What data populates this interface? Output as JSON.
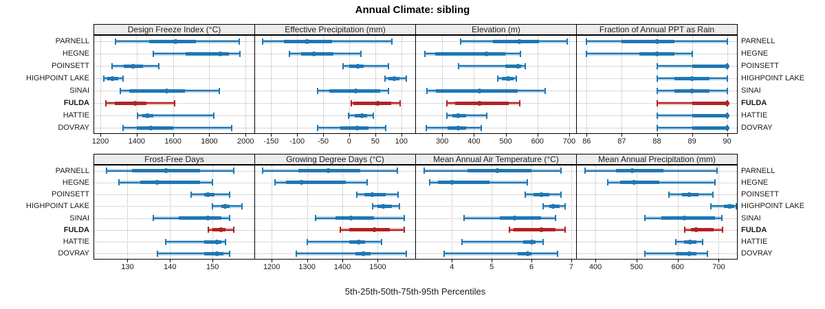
{
  "title": "Annual Climate: sibling",
  "caption": "5th-25th-50th-75th-95th Percentiles",
  "highlight_site": "FULDA",
  "colors": {
    "series_blue": "#1f77b4",
    "series_blue_band": "rgba(31,119,180,0.32)",
    "highlight_red": "#b22222",
    "highlight_red_band": "rgba(178,34,34,0.32)",
    "strip_bg": "#ececec",
    "grid": "#b4b4b4"
  },
  "chart_data": {
    "type": "scatter",
    "subtype": "trellis-percentile-dotplot",
    "percentile_labels": [
      "5th",
      "25th",
      "50th",
      "75th",
      "95th"
    ],
    "rows": [
      "PARNELL",
      "HEGNE",
      "POINSETT",
      "HIGHPOINT LAKE",
      "SINAI",
      "FULDA",
      "HATTIE",
      "DOVRAY"
    ],
    "legend_note": "FULDA highlighted in red",
    "panels": [
      {
        "title": "Design Freeze Index (°C)",
        "grid_row": "top",
        "col": 0,
        "domain": [
          1162,
          2052
        ],
        "ticks": [
          1200,
          1400,
          1600,
          1800,
          2000
        ],
        "values": [
          [
            1285,
            1470,
            1615,
            1725,
            1965
          ],
          [
            1490,
            1670,
            1860,
            1910,
            1970
          ],
          [
            1265,
            1330,
            1380,
            1435,
            1520
          ],
          [
            1220,
            1237,
            1265,
            1300,
            1323
          ],
          [
            1308,
            1360,
            1565,
            1665,
            1855
          ],
          [
            1230,
            1280,
            1390,
            1455,
            1610
          ],
          [
            1405,
            1430,
            1460,
            1490,
            1825
          ],
          [
            1325,
            1400,
            1478,
            1600,
            1925
          ]
        ]
      },
      {
        "title": "Effective Precipitation (mm)",
        "grid_row": "top",
        "col": 1,
        "domain": [
          -182,
          128
        ],
        "ticks": [
          -150,
          -100,
          -50,
          0,
          50,
          100
        ],
        "values": [
          [
            -166,
            -125,
            -81,
            -33,
            82
          ],
          [
            -115,
            -92,
            -68,
            -30,
            23
          ],
          [
            -12,
            0,
            17,
            28,
            75
          ],
          [
            69,
            75,
            86,
            97,
            109
          ],
          [
            -60,
            -38,
            12,
            60,
            75
          ],
          [
            4,
            8,
            55,
            80,
            97
          ],
          [
            -1,
            11,
            24,
            34,
            46
          ],
          [
            -60,
            -17,
            15,
            37,
            70
          ]
        ]
      },
      {
        "title": "Elevation (m)",
        "grid_row": "top",
        "col": 2,
        "domain": [
          215,
          724
        ],
        "ticks": [
          300,
          400,
          500,
          600,
          700
        ],
        "values": [
          [
            357,
            459,
            544,
            604,
            693
          ],
          [
            245,
            278,
            440,
            498,
            547
          ],
          [
            352,
            499,
            538,
            549,
            562
          ],
          [
            475,
            488,
            509,
            525,
            533
          ],
          [
            252,
            280,
            417,
            538,
            625
          ],
          [
            315,
            340,
            417,
            510,
            545
          ],
          [
            315,
            333,
            350,
            375,
            440
          ],
          [
            250,
            317,
            350,
            375,
            423
          ]
        ]
      },
      {
        "title": "Fraction of Annual PPT as Rain",
        "grid_row": "top",
        "col": 3,
        "domain": [
          85.7,
          90.3
        ],
        "ticks": [
          86,
          87,
          88,
          89,
          90
        ],
        "values": [
          [
            86,
            87,
            88,
            88.5,
            90
          ],
          [
            86,
            87.5,
            88,
            88.5,
            89
          ],
          [
            88,
            89,
            90,
            90,
            90
          ],
          [
            88,
            88.5,
            89,
            89.5,
            90
          ],
          [
            88,
            88.5,
            89,
            89.5,
            90
          ],
          [
            88,
            89,
            90,
            90,
            90
          ],
          [
            88,
            89,
            90,
            90,
            90
          ],
          [
            88,
            89,
            90,
            90,
            90
          ]
        ]
      },
      {
        "title": "Frost-Free Days",
        "grid_row": "bottom",
        "col": 0,
        "domain": [
          122,
          160
        ],
        "ticks": [
          130,
          140,
          150
        ],
        "values": [
          [
            125,
            131,
            139,
            147,
            155
          ],
          [
            128,
            133,
            137,
            147,
            150
          ],
          [
            145,
            148,
            149,
            150.5,
            154
          ],
          [
            150,
            152,
            153,
            154,
            157
          ],
          [
            136,
            142,
            149,
            152,
            154
          ],
          [
            149,
            150,
            152,
            153,
            155
          ],
          [
            139,
            148,
            151,
            152,
            153
          ],
          [
            137,
            148,
            151,
            152.5,
            154
          ]
        ]
      },
      {
        "title": "Growing Degree Days (°C)",
        "grid_row": "bottom",
        "col": 1,
        "domain": [
          1151,
          1608
        ],
        "ticks": [
          1200,
          1300,
          1400,
          1500
        ],
        "values": [
          [
            1175,
            1275,
            1360,
            1450,
            1555
          ],
          [
            1210,
            1240,
            1285,
            1410,
            1470
          ],
          [
            1440,
            1463,
            1485,
            1522,
            1558
          ],
          [
            1485,
            1500,
            1515,
            1540,
            1562
          ],
          [
            1325,
            1380,
            1425,
            1490,
            1575
          ],
          [
            1395,
            1420,
            1490,
            1535,
            1575
          ],
          [
            1300,
            1420,
            1445,
            1465,
            1510
          ],
          [
            1270,
            1437,
            1460,
            1480,
            1580
          ]
        ]
      },
      {
        "title": "Mean Annual Air Temperature (°C)",
        "grid_row": "bottom",
        "col": 2,
        "domain": [
          3.08,
          7.14
        ],
        "ticks": [
          4,
          5,
          6,
          7
        ],
        "values": [
          [
            3.3,
            4.4,
            5.15,
            6.0,
            6.75
          ],
          [
            3.45,
            3.65,
            4.0,
            4.95,
            5.9
          ],
          [
            5.85,
            6.05,
            6.25,
            6.45,
            6.75
          ],
          [
            6.3,
            6.45,
            6.55,
            6.7,
            6.85
          ],
          [
            4.3,
            5.2,
            5.57,
            6.25,
            6.6
          ],
          [
            5.45,
            5.55,
            6.25,
            6.6,
            6.85
          ],
          [
            4.25,
            5.8,
            6.0,
            6.1,
            6.3
          ],
          [
            3.8,
            5.65,
            5.9,
            6.0,
            6.65
          ]
        ]
      },
      {
        "title": "Mean Annual Precipitation (mm)",
        "grid_row": "bottom",
        "col": 3,
        "domain": [
          353,
          746
        ],
        "ticks": [
          400,
          500,
          600,
          700
        ],
        "values": [
          [
            375,
            450,
            490,
            565,
            695
          ],
          [
            430,
            460,
            495,
            555,
            690
          ],
          [
            578,
            610,
            628,
            650,
            685
          ],
          [
            680,
            712,
            727,
            738,
            743
          ],
          [
            520,
            560,
            617,
            690,
            708
          ],
          [
            618,
            632,
            645,
            688,
            710
          ],
          [
            595,
            615,
            630,
            645,
            660
          ],
          [
            520,
            595,
            628,
            645,
            673
          ]
        ]
      }
    ]
  }
}
